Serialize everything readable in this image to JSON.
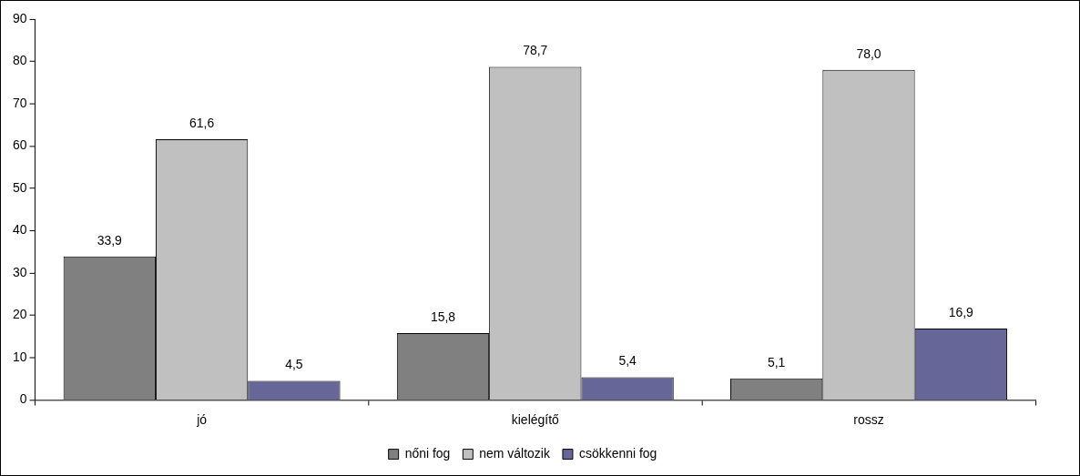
{
  "chart_data": {
    "type": "bar",
    "categories": [
      "jó",
      "kielégítő",
      "rossz"
    ],
    "series": [
      {
        "name": "nőni fog",
        "color": "#808080",
        "values": [
          33.9,
          15.8,
          5.1
        ],
        "value_labels": [
          "33,9",
          "15,8",
          "5,1"
        ]
      },
      {
        "name": "nem változik",
        "color": "#c0c0c0",
        "values": [
          61.6,
          78.7,
          78.0
        ],
        "value_labels": [
          "61,6",
          "78,7",
          "78,0"
        ]
      },
      {
        "name": "csökkenni fog",
        "color": "#666699",
        "values": [
          4.5,
          5.4,
          16.9
        ],
        "value_labels": [
          "4,5",
          "5,4",
          "16,9"
        ]
      }
    ],
    "ylim": [
      0,
      90
    ],
    "yticks": [
      0,
      10,
      20,
      30,
      40,
      50,
      60,
      70,
      80,
      90
    ],
    "grid": false,
    "legend": "bottom"
  }
}
